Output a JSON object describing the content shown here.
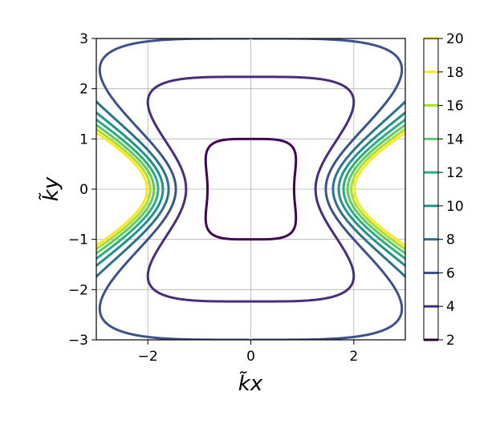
{
  "chart_data": {
    "type": "contour",
    "xlabel": "k̃x",
    "ylabel": "k̃y",
    "xlim": [
      -3,
      3
    ],
    "ylim": [
      -3,
      3
    ],
    "x_ticks": [
      -2,
      0,
      2
    ],
    "y_ticks": [
      -3,
      -2,
      -1,
      0,
      1,
      2,
      3
    ],
    "x_tick_labels": [
      "−2",
      "0",
      "2"
    ],
    "y_tick_labels": [
      "−3",
      "−2",
      "−1",
      "0",
      "1",
      "2",
      "3"
    ],
    "grid": true,
    "colormap": "viridis",
    "levels": [
      2,
      4,
      6,
      8,
      10,
      12,
      14,
      16,
      18,
      20
    ],
    "level_colors": [
      "#440154",
      "#472d7b",
      "#3b528b",
      "#2c728e",
      "#21918c",
      "#28ae80",
      "#5ec962",
      "#addc30",
      "#fde725"
    ],
    "contour_levels": [
      2,
      4,
      6,
      8,
      10,
      12,
      14,
      16,
      18
    ],
    "colorbar": {
      "ticks": [
        2,
        4,
        6,
        8,
        10,
        12,
        14,
        16,
        18,
        20
      ],
      "tick_labels": [
        "2",
        "4",
        "6",
        "8",
        "10",
        "12",
        "14",
        "16",
        "18",
        "20"
      ],
      "range": [
        2,
        20
      ]
    }
  }
}
